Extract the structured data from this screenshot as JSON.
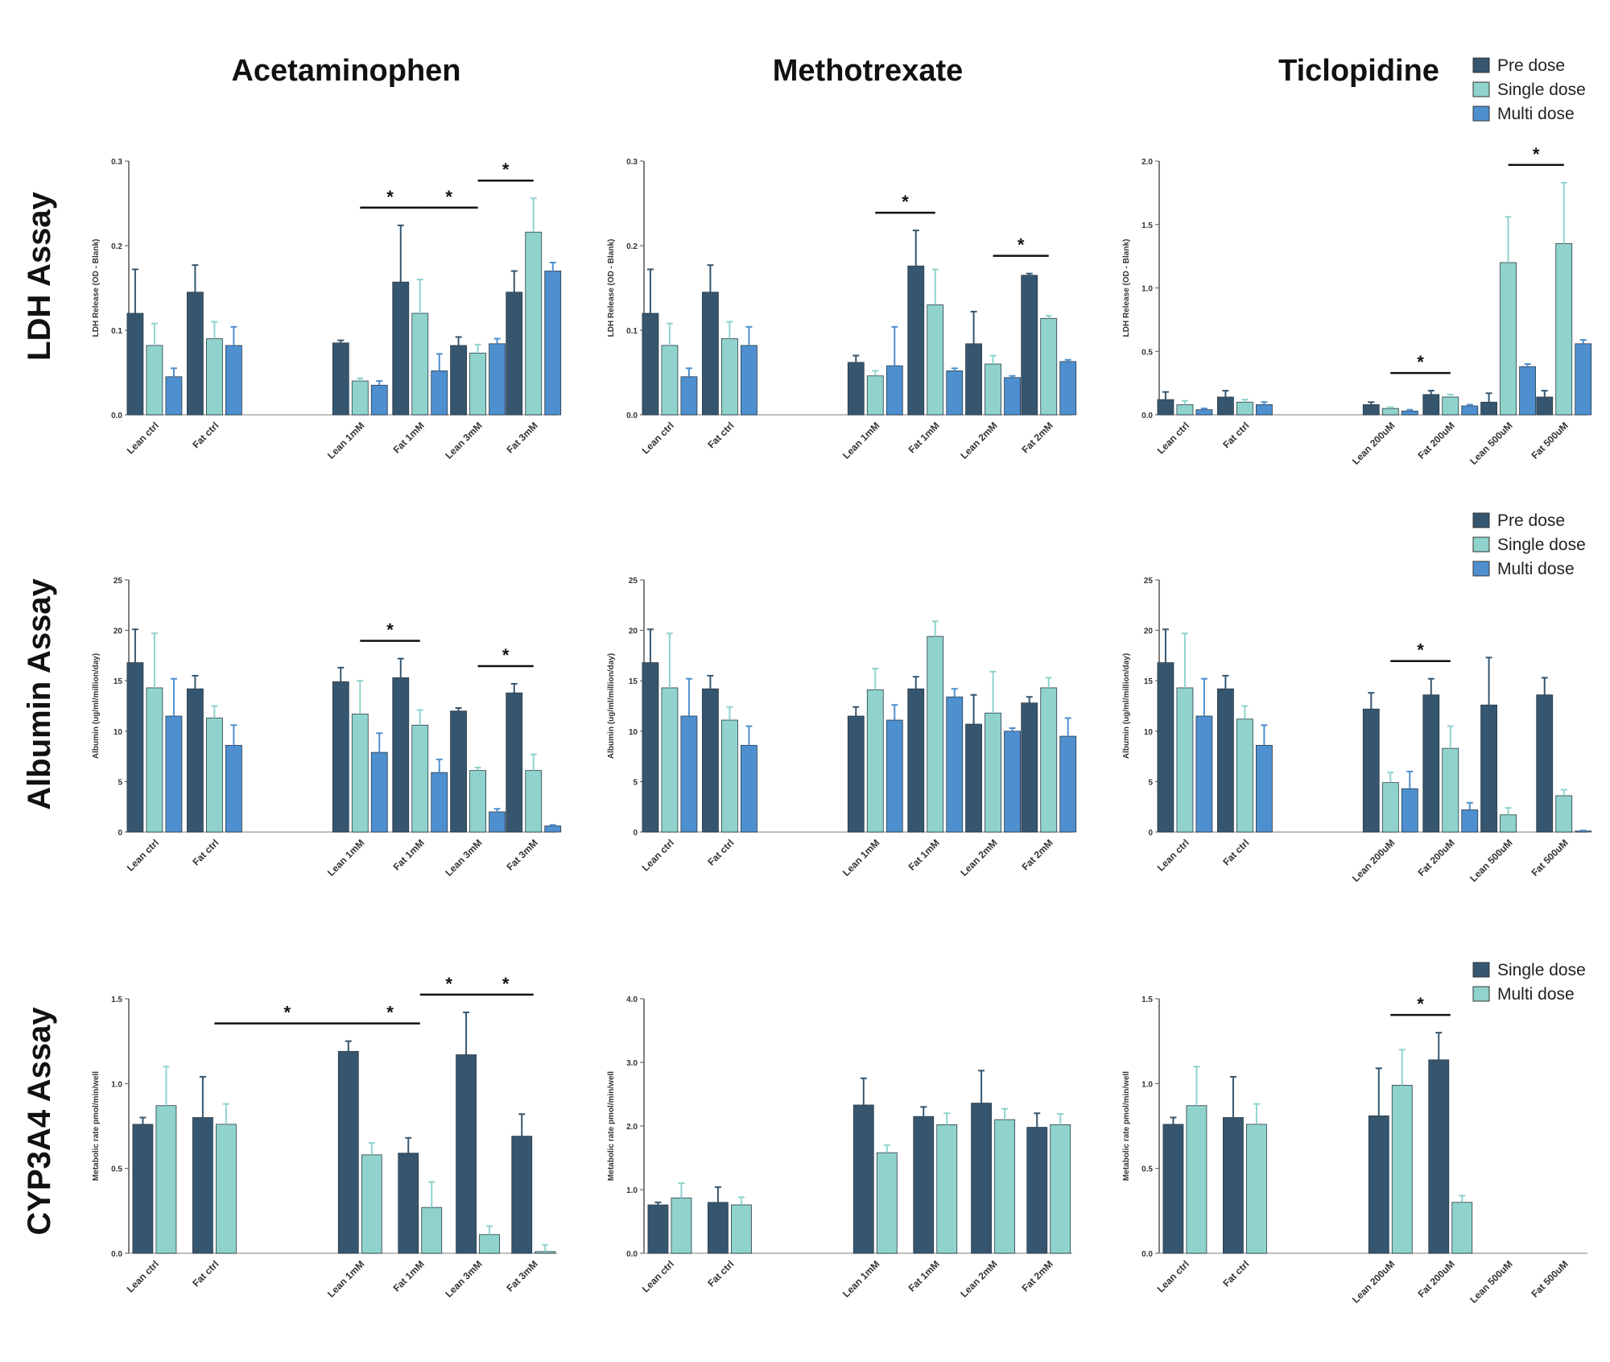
{
  "column_titles": [
    "Acetaminophen",
    "Methotrexate",
    "Ticlopidine"
  ],
  "row_titles": [
    "LDH Assay",
    "Albumin Assay",
    "CYP3A4 Assay"
  ],
  "colors": {
    "pre_dose": "#36566f",
    "single_dose_three_series": "#8fd3cc",
    "multi_dose_three_series": "#4e8fcf",
    "single_dose_two_series": "#36566f",
    "multi_dose_two_series": "#8fd3cc"
  },
  "legends": [
    {
      "placement": "top-right of LDH row",
      "entries": [
        {
          "label": "Pre dose",
          "color": "#36566f"
        },
        {
          "label": "Single dose",
          "color": "#8fd3cc"
        },
        {
          "label": "Multi dose",
          "color": "#4e8fcf"
        }
      ]
    },
    {
      "placement": "top-right of Albumin row",
      "entries": [
        {
          "label": "Pre dose",
          "color": "#36566f"
        },
        {
          "label": "Single dose",
          "color": "#8fd3cc"
        },
        {
          "label": "Multi dose",
          "color": "#4e8fcf"
        }
      ]
    },
    {
      "placement": "top-right of CYP3A4 row",
      "entries": [
        {
          "label": "Single dose",
          "color": "#36566f"
        },
        {
          "label": "Multi dose",
          "color": "#8fd3cc"
        }
      ]
    }
  ],
  "chart_data": [
    {
      "type": "bar",
      "row": 0,
      "col": 0,
      "ylabel": "LDH Release (OD - Blank)",
      "ylim": [
        0,
        0.3
      ],
      "yticks": [
        "0.0",
        "0.1",
        "0.2",
        "0.3"
      ],
      "categories": [
        "Lean ctrl",
        "Fat ctrl",
        "Lean 1mM",
        "Fat 1mM",
        "Lean 3mM",
        "Fat 3mM"
      ],
      "series": [
        {
          "name": "Pre dose",
          "values": [
            0.12,
            0.145,
            0.085,
            0.157,
            0.082,
            0.145
          ],
          "errors": [
            0.052,
            0.032,
            0.003,
            0.067,
            0.01,
            0.025
          ]
        },
        {
          "name": "Single dose",
          "values": [
            0.082,
            0.09,
            0.04,
            0.12,
            0.073,
            0.216
          ],
          "errors": [
            0.026,
            0.02,
            0.003,
            0.04,
            0.01,
            0.04
          ]
        },
        {
          "name": "Multi dose",
          "values": [
            0.045,
            0.082,
            0.035,
            0.052,
            0.084,
            0.17
          ],
          "errors": [
            0.01,
            0.022,
            0.005,
            0.02,
            0.006,
            0.01
          ]
        }
      ],
      "significance": [
        [
          3,
          "*"
        ],
        [
          4,
          "*"
        ],
        [
          5,
          "*"
        ]
      ]
    },
    {
      "type": "bar",
      "row": 0,
      "col": 1,
      "ylabel": "LDH Release (OD - Blank)",
      "ylim": [
        0,
        0.3
      ],
      "yticks": [
        "0.0",
        "0.1",
        "0.2",
        "0.3"
      ],
      "categories": [
        "Lean ctrl",
        "Fat ctrl",
        "Lean 1mM",
        "Fat 1mM",
        "Lean 2mM",
        "Fat 2mM"
      ],
      "series": [
        {
          "name": "Pre dose",
          "values": [
            0.12,
            0.145,
            0.062,
            0.176,
            0.084,
            0.165
          ],
          "errors": [
            0.052,
            0.032,
            0.008,
            0.042,
            0.038,
            0.002
          ]
        },
        {
          "name": "Single dose",
          "values": [
            0.082,
            0.09,
            0.046,
            0.13,
            0.06,
            0.114
          ],
          "errors": [
            0.026,
            0.02,
            0.006,
            0.042,
            0.01,
            0.003
          ]
        },
        {
          "name": "Multi dose",
          "values": [
            0.045,
            0.082,
            0.058,
            0.052,
            0.044,
            0.063
          ],
          "errors": [
            0.01,
            0.022,
            0.046,
            0.003,
            0.002,
            0.002
          ]
        }
      ],
      "significance": [
        [
          3,
          "*"
        ],
        [
          5,
          "*"
        ]
      ]
    },
    {
      "type": "bar",
      "row": 0,
      "col": 2,
      "ylabel": "LDH Release (OD - Blank)",
      "ylim": [
        0,
        2.0
      ],
      "yticks": [
        "0.0",
        "0.5",
        "1.0",
        "1.5",
        "2.0"
      ],
      "categories": [
        "Lean ctrl",
        "Fat ctrl",
        "Lean 200uM",
        "Fat 200uM",
        "Lean 500uM",
        "Fat 500uM"
      ],
      "series": [
        {
          "name": "Pre dose",
          "values": [
            0.12,
            0.14,
            0.08,
            0.16,
            0.1,
            0.14
          ],
          "errors": [
            0.06,
            0.05,
            0.02,
            0.03,
            0.07,
            0.05
          ]
        },
        {
          "name": "Single dose",
          "values": [
            0.08,
            0.1,
            0.05,
            0.14,
            1.2,
            1.35
          ],
          "errors": [
            0.03,
            0.02,
            0.01,
            0.02,
            0.36,
            0.48
          ]
        },
        {
          "name": "Multi dose",
          "values": [
            0.04,
            0.08,
            0.03,
            0.07,
            0.38,
            0.56
          ],
          "errors": [
            0.01,
            0.02,
            0.01,
            0.01,
            0.02,
            0.03
          ]
        }
      ],
      "significance": [
        [
          3,
          "*"
        ],
        [
          5,
          "*"
        ]
      ]
    },
    {
      "type": "bar",
      "row": 1,
      "col": 0,
      "ylabel": "Albumin (ug/ml/million/day)",
      "ylim": [
        0,
        25
      ],
      "yticks": [
        "0",
        "5",
        "10",
        "15",
        "20",
        "25"
      ],
      "categories": [
        "Lean ctrl",
        "Fat ctrl",
        "Lean 1mM",
        "Fat 1mM",
        "Lean 3mM",
        "Fat 3mM"
      ],
      "series": [
        {
          "name": "Pre dose",
          "values": [
            16.8,
            14.2,
            14.9,
            15.3,
            12.0,
            13.8
          ],
          "errors": [
            3.3,
            1.3,
            1.4,
            1.9,
            0.3,
            0.9
          ]
        },
        {
          "name": "Single dose",
          "values": [
            14.3,
            11.3,
            11.7,
            10.6,
            6.1,
            6.1
          ],
          "errors": [
            5.4,
            1.2,
            3.3,
            1.5,
            0.3,
            1.6
          ]
        },
        {
          "name": "Multi dose",
          "values": [
            11.5,
            8.6,
            7.9,
            5.9,
            2.0,
            0.6
          ],
          "errors": [
            3.7,
            2.0,
            1.9,
            1.3,
            0.3,
            0.1
          ]
        }
      ],
      "significance": [
        [
          3,
          "*"
        ],
        [
          5,
          "*"
        ]
      ]
    },
    {
      "type": "bar",
      "row": 1,
      "col": 1,
      "ylabel": "Albumin (ug/ml/million/day)",
      "ylim": [
        0,
        25
      ],
      "yticks": [
        "0",
        "5",
        "10",
        "15",
        "20",
        "25"
      ],
      "categories": [
        "Lean ctrl",
        "Fat ctrl",
        "Lean 1mM",
        "Fat 1mM",
        "Lean 2mM",
        "Fat 2mM"
      ],
      "series": [
        {
          "name": "Pre dose",
          "values": [
            16.8,
            14.2,
            11.5,
            14.2,
            10.7,
            12.8
          ],
          "errors": [
            3.3,
            1.3,
            0.9,
            1.2,
            2.9,
            0.6
          ]
        },
        {
          "name": "Single dose",
          "values": [
            14.3,
            11.1,
            14.1,
            19.4,
            11.8,
            14.3
          ],
          "errors": [
            5.4,
            1.3,
            2.1,
            1.5,
            4.1,
            1.0
          ]
        },
        {
          "name": "Multi dose",
          "values": [
            11.5,
            8.6,
            11.1,
            13.4,
            10.0,
            9.5
          ],
          "errors": [
            3.7,
            1.9,
            1.5,
            0.8,
            0.3,
            1.8
          ]
        }
      ],
      "significance": []
    },
    {
      "type": "bar",
      "row": 1,
      "col": 2,
      "ylabel": "Albumin (ug/ml/million/day)",
      "ylim": [
        0,
        25
      ],
      "yticks": [
        "0",
        "5",
        "10",
        "15",
        "20",
        "25"
      ],
      "categories": [
        "Lean ctrl",
        "Fat ctrl",
        "Lean 200uM",
        "Fat 200uM",
        "Lean 500uM",
        "Fat 500uM"
      ],
      "series": [
        {
          "name": "Pre dose",
          "values": [
            16.8,
            14.2,
            12.2,
            13.6,
            12.6,
            13.6
          ],
          "errors": [
            3.3,
            1.3,
            1.6,
            1.6,
            4.7,
            1.7
          ]
        },
        {
          "name": "Single dose",
          "values": [
            14.3,
            11.2,
            4.9,
            8.3,
            1.7,
            3.6
          ],
          "errors": [
            5.4,
            1.3,
            1.0,
            2.2,
            0.7,
            0.6
          ]
        },
        {
          "name": "Multi dose",
          "values": [
            11.5,
            8.6,
            4.3,
            2.2,
            0.0,
            0.1
          ],
          "errors": [
            3.7,
            2.0,
            1.7,
            0.7,
            0.0,
            0.05
          ]
        }
      ],
      "significance": [
        [
          3,
          "*"
        ]
      ]
    },
    {
      "type": "bar",
      "row": 2,
      "col": 0,
      "ylabel": "Metabolic rate pmol/min/well",
      "ylim": [
        0,
        1.5
      ],
      "yticks": [
        "0.0",
        "0.5",
        "1.0",
        "1.5"
      ],
      "categories": [
        "Lean ctrl",
        "Fat ctrl",
        "Lean 1mM",
        "Fat 1mM",
        "Lean 3mM",
        "Fat 3mM"
      ],
      "series": [
        {
          "name": "Single dose",
          "values": [
            0.76,
            0.8,
            1.19,
            0.59,
            1.17,
            0.69
          ],
          "errors": [
            0.04,
            0.24,
            0.06,
            0.09,
            0.25,
            0.13
          ]
        },
        {
          "name": "Multi dose",
          "values": [
            0.87,
            0.76,
            0.58,
            0.27,
            0.11,
            0.01
          ],
          "errors": [
            0.23,
            0.12,
            0.07,
            0.15,
            0.05,
            0.04
          ]
        }
      ],
      "significance": [
        [
          2,
          "*"
        ],
        [
          3,
          "*"
        ],
        [
          4,
          "*"
        ],
        [
          5,
          "*"
        ]
      ]
    },
    {
      "type": "bar",
      "row": 2,
      "col": 1,
      "ylabel": "Metabolic rate pmol/min/well",
      "ylim": [
        0,
        4.0
      ],
      "yticks": [
        "0.0",
        "1.0",
        "2.0",
        "3.0",
        "4.0"
      ],
      "categories": [
        "Lean ctrl",
        "Fat ctrl",
        "Lean 1mM",
        "Fat 1mM",
        "Lean 2mM",
        "Fat 2mM"
      ],
      "series": [
        {
          "name": "Single dose",
          "values": [
            0.76,
            0.8,
            2.33,
            2.15,
            2.36,
            1.98
          ],
          "errors": [
            0.04,
            0.24,
            0.42,
            0.15,
            0.51,
            0.22
          ]
        },
        {
          "name": "Multi dose",
          "values": [
            0.87,
            0.76,
            1.58,
            2.02,
            2.1,
            2.02
          ],
          "errors": [
            0.23,
            0.12,
            0.12,
            0.18,
            0.17,
            0.17
          ]
        }
      ],
      "significance": []
    },
    {
      "type": "bar",
      "row": 2,
      "col": 2,
      "ylabel": "Metabolic rate pmol/min/well",
      "ylim": [
        0,
        1.5
      ],
      "yticks": [
        "0.0",
        "0.5",
        "1.0",
        "1.5"
      ],
      "categories": [
        "Lean ctrl",
        "Fat ctrl",
        "Lean 200uM",
        "Fat 200uM",
        "Lean 500uM",
        "Fat 500uM"
      ],
      "series": [
        {
          "name": "Single dose",
          "values": [
            0.76,
            0.8,
            0.81,
            1.14,
            0,
            0
          ],
          "errors": [
            0.04,
            0.24,
            0.28,
            0.16,
            0,
            0
          ]
        },
        {
          "name": "Multi dose",
          "values": [
            0.87,
            0.76,
            0.99,
            0.3,
            0,
            0
          ],
          "errors": [
            0.23,
            0.12,
            0.21,
            0.04,
            0,
            0
          ]
        }
      ],
      "significance": [
        [
          3,
          "*"
        ]
      ]
    }
  ]
}
